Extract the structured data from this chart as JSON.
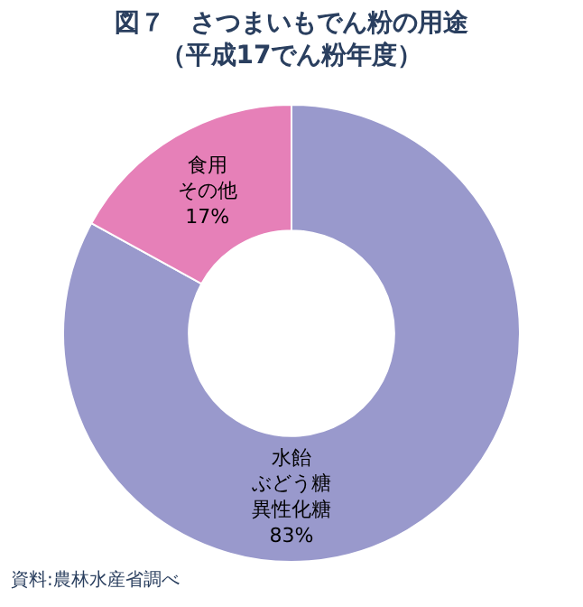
{
  "chart_data": {
    "type": "donut",
    "title": "図７　さつまいもでん粉の用途",
    "subtitle": "（平成17でん粉年度）",
    "categories": [
      "水飴ぶどう糖異性化糖",
      "食用その他"
    ],
    "values": [
      83,
      17
    ],
    "value_labels": [
      "83%",
      "17%"
    ],
    "colors": [
      "#9999cc",
      "#e680b8"
    ],
    "annotations": [
      "資料:農林水産省調べ"
    ],
    "legend": false
  }
}
